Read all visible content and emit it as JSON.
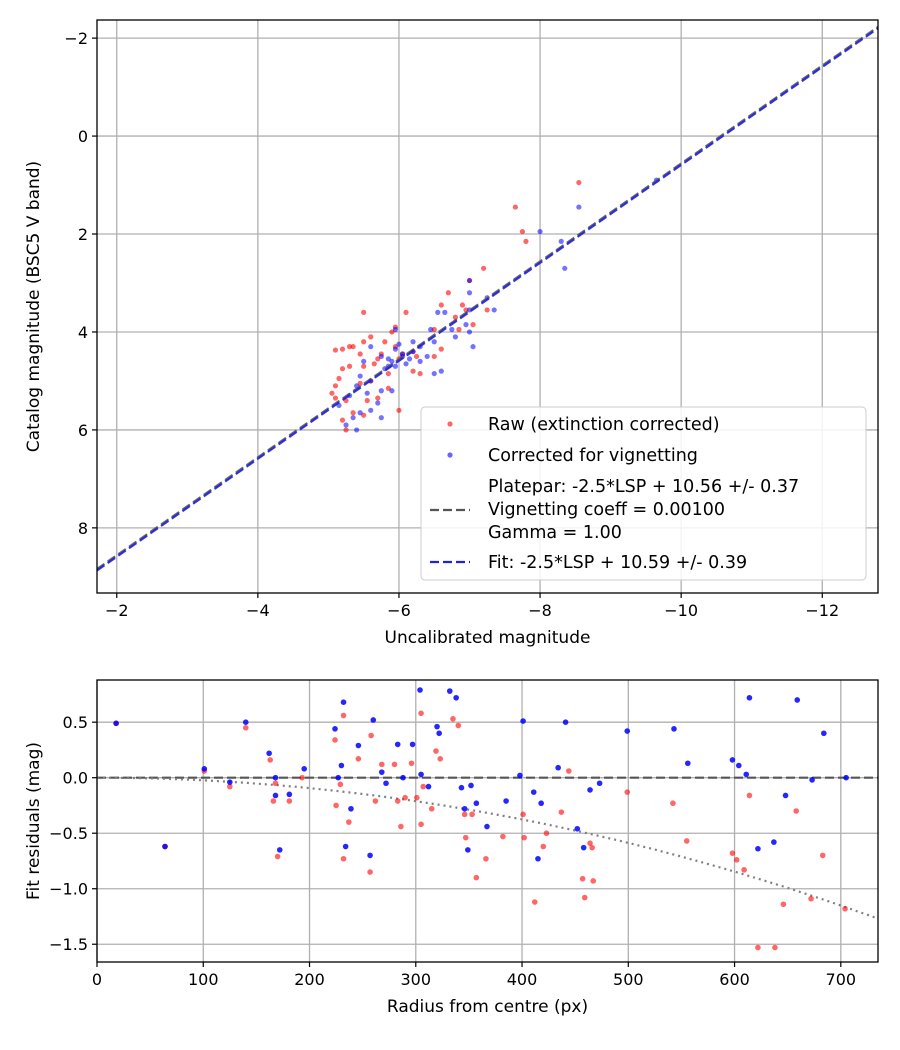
{
  "chart_data": [
    {
      "type": "scatter",
      "title": "",
      "xlabel": "Uncalibrated magnitude",
      "ylabel": "Catalog magnitude (BSC5 V band)",
      "xlim": [
        -1.72,
        -12.79
      ],
      "ylim": [
        9.33,
        -2.37
      ],
      "x_inverted": true,
      "y_inverted": true,
      "grid": true,
      "xticks": [
        -2,
        -4,
        -6,
        -8,
        -10,
        -12
      ],
      "xtick_labels": [
        "−2",
        "−4",
        "−6",
        "−8",
        "−10",
        "−12"
      ],
      "yticks": [
        -2,
        0,
        2,
        4,
        6,
        8
      ],
      "ytick_labels": [
        "−2",
        "0",
        "2",
        "4",
        "6",
        "8"
      ],
      "legend_position": "lower-right",
      "legend": [
        {
          "label": "Raw (extinction corrected)",
          "kind": "point",
          "color": "#ff0000"
        },
        {
          "label": "Corrected for vignetting",
          "kind": "point",
          "color": "#0000ff"
        },
        {
          "label": "Platepar: -2.5*LSP + 10.56 +/- 0.37",
          "label2": "Vignetting coeff = 0.00100",
          "label3": "Gamma = 1.00",
          "kind": "dashed-line",
          "color": "#555555"
        },
        {
          "label": "Fit: -2.5*LSP + 10.59 +/- 0.39",
          "kind": "dashed-line",
          "color": "#2020dd"
        }
      ],
      "lines": [
        {
          "name": "Platepar",
          "slope": 1,
          "intercept": 10.56,
          "color": "#555555"
        },
        {
          "name": "Fit",
          "slope": 1,
          "intercept": 10.59,
          "color": "#2020dd"
        }
      ],
      "series": [
        {
          "name": "Raw (extinction corrected)",
          "color": "#ff0000",
          "points": [
            [
              -5.1,
              5.1
            ],
            [
              -5.05,
              5.25
            ],
            [
              -5.1,
              5.35
            ],
            [
              -5.15,
              4.95
            ],
            [
              -5.2,
              4.75
            ],
            [
              -5.25,
              5.4
            ],
            [
              -5.3,
              4.3
            ],
            [
              -5.2,
              4.35
            ],
            [
              -5.1,
              4.37
            ],
            [
              -5.35,
              4.3
            ],
            [
              -5.45,
              4.45
            ],
            [
              -5.5,
              4.2
            ],
            [
              -5.6,
              4.1
            ],
            [
              -5.5,
              4.7
            ],
            [
              -5.65,
              4.65
            ],
            [
              -5.7,
              4.55
            ],
            [
              -5.75,
              4.45
            ],
            [
              -5.8,
              4.2
            ],
            [
              -5.9,
              4.0
            ],
            [
              -5.95,
              3.9
            ],
            [
              -5.95,
              4.3
            ],
            [
              -6.0,
              4.55
            ],
            [
              -5.85,
              4.85
            ],
            [
              -5.6,
              5.0
            ],
            [
              -5.55,
              5.4
            ],
            [
              -5.35,
              5.65
            ],
            [
              -5.2,
              5.8
            ],
            [
              -5.25,
              6.0
            ],
            [
              -5.5,
              3.6
            ],
            [
              -6.1,
              3.6
            ],
            [
              -6.2,
              4.8
            ],
            [
              -6.3,
              4.85
            ],
            [
              -6.5,
              4.5
            ],
            [
              -6.6,
              4.35
            ],
            [
              -6.5,
              3.95
            ],
            [
              -6.8,
              3.7
            ],
            [
              -6.9,
              3.45
            ],
            [
              -6.95,
              3.55
            ],
            [
              -7.0,
              2.95
            ],
            [
              -7.2,
              2.7
            ],
            [
              -7.05,
              3.85
            ],
            [
              -6.7,
              3.2
            ],
            [
              -7.65,
              1.45
            ],
            [
              -7.75,
              1.95
            ],
            [
              -7.8,
              2.15
            ],
            [
              -8.55,
              0.95
            ],
            [
              -5.3,
              4.7
            ],
            [
              -5.45,
              5.05
            ],
            [
              -5.85,
              5.15
            ],
            [
              -6.2,
              4.4
            ],
            [
              -6.25,
              4.5
            ],
            [
              -6.05,
              4.45
            ],
            [
              -5.7,
              5.35
            ],
            [
              -5.5,
              5.7
            ],
            [
              -6.85,
              3.95
            ],
            [
              -7.25,
              3.55
            ],
            [
              -6.6,
              3.45
            ],
            [
              -6.0,
              5.6
            ]
          ]
        },
        {
          "name": "Corrected for vignetting",
          "color": "#0000ff",
          "points": [
            [
              -5.15,
              5.5
            ],
            [
              -5.3,
              5.3
            ],
            [
              -5.4,
              5.1
            ],
            [
              -5.45,
              4.9
            ],
            [
              -5.5,
              4.6
            ],
            [
              -5.6,
              5.0
            ],
            [
              -5.6,
              5.6
            ],
            [
              -5.4,
              6.0
            ],
            [
              -5.35,
              5.75
            ],
            [
              -5.6,
              4.3
            ],
            [
              -5.75,
              4.5
            ],
            [
              -5.8,
              4.75
            ],
            [
              -5.85,
              4.7
            ],
            [
              -5.9,
              4.6
            ],
            [
              -5.95,
              4.35
            ],
            [
              -6.0,
              4.25
            ],
            [
              -6.05,
              4.5
            ],
            [
              -6.1,
              4.65
            ],
            [
              -6.15,
              4.55
            ],
            [
              -6.2,
              4.4
            ],
            [
              -6.3,
              4.3
            ],
            [
              -6.4,
              4.5
            ],
            [
              -6.5,
              4.85
            ],
            [
              -6.6,
              4.8
            ],
            [
              -6.45,
              3.95
            ],
            [
              -6.55,
              3.6
            ],
            [
              -6.65,
              3.6
            ],
            [
              -6.8,
              4.1
            ],
            [
              -6.95,
              3.85
            ],
            [
              -7.0,
              3.55
            ],
            [
              -7.0,
              4.0
            ],
            [
              -7.05,
              4.3
            ],
            [
              -7.35,
              3.55
            ],
            [
              -7.0,
              3.2
            ],
            [
              -7.0,
              2.95
            ],
            [
              -8.0,
              1.95
            ],
            [
              -8.3,
              2.15
            ],
            [
              -8.35,
              2.7
            ],
            [
              -8.55,
              1.45
            ],
            [
              -9.65,
              0.9
            ],
            [
              -5.7,
              5.45
            ],
            [
              -5.75,
              5.2
            ],
            [
              -5.9,
              5.2
            ],
            [
              -5.55,
              5.25
            ],
            [
              -5.85,
              4.55
            ],
            [
              -6.3,
              4.6
            ],
            [
              -6.2,
              4.2
            ],
            [
              -5.95,
              4.7
            ],
            [
              -5.95,
              3.95
            ],
            [
              -6.05,
              4.45
            ],
            [
              -6.5,
              4.2
            ],
            [
              -6.75,
              3.95
            ],
            [
              -7.25,
              3.3
            ],
            [
              -5.25,
              5.9
            ],
            [
              -5.45,
              5.65
            ],
            [
              -5.75,
              5.75
            ]
          ]
        }
      ]
    },
    {
      "type": "scatter",
      "title": "",
      "xlabel": "Radius from centre (px)",
      "ylabel": "Fit residuals (mag)",
      "xlim": [
        0,
        735
      ],
      "ylim": [
        -1.66,
        0.88
      ],
      "grid": true,
      "xticks": [
        0,
        100,
        200,
        300,
        400,
        500,
        600,
        700
      ],
      "xtick_labels": [
        "0",
        "100",
        "200",
        "300",
        "400",
        "500",
        "600",
        "700"
      ],
      "yticks": [
        0.5,
        0.0,
        -0.5,
        -1.0,
        -1.5
      ],
      "ytick_labels": [
        "0.5",
        "0.0",
        "−0.5",
        "−1.0",
        "−1.5"
      ],
      "zero_line": {
        "y": 0,
        "style": "dashed",
        "color": "#555555"
      },
      "vignetting_curve": {
        "style": "dotted",
        "color": "#808080",
        "coef": -2.35e-06
      },
      "series": [
        {
          "name": "Raw",
          "color": "#ff0000",
          "points": [
            [
              18,
              0.49
            ],
            [
              64,
              -0.62
            ],
            [
              101,
              0.06
            ],
            [
              125,
              -0.08
            ],
            [
              140,
              0.45
            ],
            [
              163,
              0.16
            ],
            [
              166,
              -0.21
            ],
            [
              168,
              -0.05
            ],
            [
              170,
              -0.71
            ],
            [
              181,
              -0.21
            ],
            [
              193,
              0.0
            ],
            [
              224,
              0.34
            ],
            [
              225,
              -0.25
            ],
            [
              229,
              -0.06
            ],
            [
              232,
              0.56
            ],
            [
              232,
              -0.73
            ],
            [
              237,
              -0.4
            ],
            [
              246,
              0.17
            ],
            [
              257,
              -0.85
            ],
            [
              258,
              0.38
            ],
            [
              262,
              -0.21
            ],
            [
              268,
              0.12
            ],
            [
              280,
              0.12
            ],
            [
              283,
              -0.21
            ],
            [
              286,
              -0.44
            ],
            [
              290,
              -0.18
            ],
            [
              296,
              0.13
            ],
            [
              301,
              -0.18
            ],
            [
              305,
              0.58
            ],
            [
              305,
              -0.42
            ],
            [
              307,
              -0.08
            ],
            [
              315,
              -0.28
            ],
            [
              319,
              0.24
            ],
            [
              323,
              0.17
            ],
            [
              335,
              0.53
            ],
            [
              340,
              0.47
            ],
            [
              346,
              -0.33
            ],
            [
              347,
              -0.54
            ],
            [
              357,
              -0.9
            ],
            [
              353,
              -0.33
            ],
            [
              366,
              -0.73
            ],
            [
              382,
              -0.53
            ],
            [
              401,
              -0.33
            ],
            [
              402,
              -0.54
            ],
            [
              412,
              -1.12
            ],
            [
              420,
              -0.62
            ],
            [
              423,
              -0.5
            ],
            [
              437,
              -0.31
            ],
            [
              444,
              0.06
            ],
            [
              457,
              -0.91
            ],
            [
              459,
              -1.08
            ],
            [
              464,
              -0.59
            ],
            [
              467,
              -0.93
            ],
            [
              466,
              -0.63
            ],
            [
              499,
              -0.13
            ],
            [
              542,
              -0.23
            ],
            [
              555,
              -0.57
            ],
            [
              598,
              -0.68
            ],
            [
              602,
              -0.74
            ],
            [
              609,
              -0.83
            ],
            [
              614,
              -0.16
            ],
            [
              622,
              -1.53
            ],
            [
              638,
              -1.53
            ],
            [
              646,
              -1.14
            ],
            [
              658,
              -0.3
            ],
            [
              672,
              -1.09
            ],
            [
              683,
              -0.7
            ],
            [
              704,
              -1.18
            ]
          ]
        },
        {
          "name": "Corrected",
          "color": "#0000ff",
          "points": [
            [
              18,
              0.49
            ],
            [
              64,
              -0.62
            ],
            [
              101,
              0.08
            ],
            [
              125,
              -0.04
            ],
            [
              140,
              0.5
            ],
            [
              162,
              0.22
            ],
            [
              168,
              0.0
            ],
            [
              168,
              -0.16
            ],
            [
              172,
              -0.65
            ],
            [
              181,
              -0.15
            ],
            [
              195,
              0.08
            ],
            [
              224,
              0.44
            ],
            [
              227,
              0.0
            ],
            [
              230,
              0.11
            ],
            [
              232,
              0.68
            ],
            [
              234,
              -0.62
            ],
            [
              239,
              -0.28
            ],
            [
              246,
              0.29
            ],
            [
              257,
              -0.7
            ],
            [
              260,
              0.52
            ],
            [
              268,
              0.05
            ],
            [
              272,
              -0.05
            ],
            [
              283,
              0.3
            ],
            [
              288,
              0.0
            ],
            [
              297,
              0.3
            ],
            [
              304,
              0.79
            ],
            [
              305,
              0.03
            ],
            [
              312,
              -0.08
            ],
            [
              320,
              0.46
            ],
            [
              322,
              0.4
            ],
            [
              332,
              0.78
            ],
            [
              338,
              0.72
            ],
            [
              343,
              -0.09
            ],
            [
              346,
              -0.28
            ],
            [
              349,
              -0.65
            ],
            [
              352,
              -0.07
            ],
            [
              357,
              -0.23
            ],
            [
              367,
              -0.44
            ],
            [
              385,
              -0.21
            ],
            [
              398,
              0.02
            ],
            [
              401,
              0.51
            ],
            [
              411,
              -0.13
            ],
            [
              415,
              -0.73
            ],
            [
              418,
              -0.23
            ],
            [
              434,
              0.09
            ],
            [
              441,
              0.5
            ],
            [
              452,
              -0.46
            ],
            [
              458,
              -0.63
            ],
            [
              464,
              -0.11
            ],
            [
              473,
              -0.05
            ],
            [
              499,
              0.42
            ],
            [
              543,
              0.44
            ],
            [
              556,
              0.13
            ],
            [
              598,
              0.16
            ],
            [
              604,
              0.11
            ],
            [
              611,
              0.03
            ],
            [
              614,
              0.72
            ],
            [
              622,
              -0.64
            ],
            [
              637,
              -0.58
            ],
            [
              648,
              -0.16
            ],
            [
              659,
              0.7
            ],
            [
              673,
              -0.02
            ],
            [
              684,
              0.4
            ],
            [
              705,
              0.0
            ]
          ]
        }
      ]
    }
  ]
}
